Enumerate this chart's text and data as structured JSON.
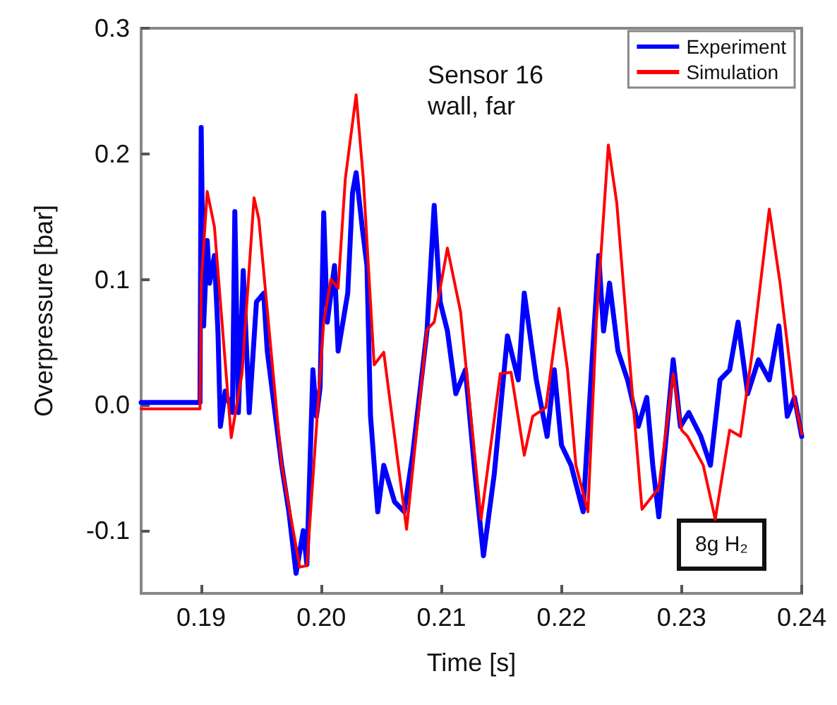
{
  "chart_data": {
    "type": "line",
    "xlabel": "Time [s]",
    "ylabel": "Overpressure [bar]",
    "annotations": [
      "Sensor 16\nwall, far",
      "8g H₂"
    ],
    "xlim": [
      0.185,
      0.24
    ],
    "xticks": [
      0.19,
      {
        "value": 0.2,
        "label": "0.20"
      },
      0.21,
      0.22,
      0.23,
      0.24
    ],
    "ylim": [
      -0.15,
      0.3
    ],
    "yticks": [
      -0.1,
      {
        "value": 0,
        "label": "0.0"
      },
      0.1,
      0.2,
      0.3
    ],
    "grid": false,
    "legend": "top right",
    "marker": "none",
    "line_style": "solid",
    "series": [
      {
        "name": "Experiment",
        "color": "#0000ff",
        "x": [
          0.185,
          0.1899,
          0.19,
          0.1902,
          0.1905,
          0.1907,
          0.1911,
          0.1914,
          0.1916,
          0.192,
          0.1926,
          0.1928,
          0.1931,
          0.1935,
          0.194,
          0.1946,
          0.1952,
          0.1955,
          0.1967,
          0.1973,
          0.1979,
          0.1985,
          0.1988,
          0.1993,
          0.1996,
          0.1999,
          0.2002,
          0.2005,
          0.2011,
          0.2014,
          0.2022,
          0.2026,
          0.2029,
          0.2034,
          0.2038,
          0.2041,
          0.2047,
          0.2052,
          0.2061,
          0.2069,
          0.2076,
          0.2088,
          0.2094,
          0.2099,
          0.2105,
          0.2112,
          0.212,
          0.2128,
          0.2135,
          0.2144,
          0.2155,
          0.2164,
          0.2169,
          0.2179,
          0.2188,
          0.2194,
          0.22,
          0.2208,
          0.2218,
          0.2225,
          0.2231,
          0.2235,
          0.224,
          0.2247,
          0.2255,
          0.2264,
          0.2271,
          0.2276,
          0.2281,
          0.2293,
          0.2299,
          0.2306,
          0.2316,
          0.2324,
          0.2332,
          0.234,
          0.2347,
          0.2355,
          0.2364,
          0.2373,
          0.2381,
          0.2388,
          0.2394,
          0.24
        ],
        "values": [
          0.002,
          0.002,
          0.221,
          0.063,
          0.131,
          0.097,
          0.119,
          0.057,
          -0.017,
          0.011,
          -0.006,
          0.154,
          -0.006,
          0.107,
          -0.006,
          0.082,
          0.089,
          0.043,
          -0.048,
          -0.085,
          -0.134,
          -0.1,
          -0.127,
          0.028,
          -0.009,
          0.014,
          0.153,
          0.066,
          0.111,
          0.043,
          0.089,
          0.169,
          0.185,
          0.142,
          0.111,
          -0.009,
          -0.085,
          -0.048,
          -0.077,
          -0.085,
          -0.04,
          0.059,
          0.159,
          0.082,
          0.059,
          0.009,
          0.028,
          -0.055,
          -0.12,
          -0.055,
          0.055,
          0.02,
          0.089,
          0.02,
          -0.025,
          0.028,
          -0.032,
          -0.048,
          -0.085,
          0.028,
          0.119,
          0.059,
          0.097,
          0.043,
          0.02,
          -0.017,
          0.006,
          -0.048,
          -0.089,
          0.036,
          -0.017,
          -0.006,
          -0.025,
          -0.048,
          0.02,
          0.028,
          0.066,
          0.009,
          0.036,
          0.02,
          0.063,
          -0.009,
          0.006,
          -0.025
        ]
      },
      {
        "name": "Simulation",
        "color": "#ff0000",
        "x": [
          0.185,
          0.1899,
          0.19,
          0.1905,
          0.1911,
          0.1925,
          0.1934,
          0.1944,
          0.1948,
          0.1967,
          0.1982,
          0.1988,
          0.2002,
          0.2008,
          0.2014,
          0.202,
          0.2029,
          0.2035,
          0.2044,
          0.2052,
          0.2071,
          0.2088,
          0.2094,
          0.2105,
          0.2116,
          0.2133,
          0.2149,
          0.2158,
          0.2169,
          0.2176,
          0.2187,
          0.2198,
          0.2205,
          0.2212,
          0.2222,
          0.2229,
          0.2239,
          0.2246,
          0.2255,
          0.2267,
          0.2281,
          0.2293,
          0.23,
          0.2305,
          0.2318,
          0.2328,
          0.234,
          0.2349,
          0.2359,
          0.2373,
          0.2382,
          0.2393,
          0.24
        ],
        "values": [
          -0.003,
          -0.003,
          0.097,
          0.17,
          0.142,
          -0.026,
          0.025,
          0.165,
          0.148,
          -0.048,
          -0.129,
          -0.128,
          0.066,
          0.1,
          0.093,
          0.18,
          0.247,
          0.18,
          0.032,
          0.042,
          -0.099,
          0.06,
          0.066,
          0.125,
          0.074,
          -0.091,
          0.025,
          0.026,
          -0.04,
          -0.009,
          -0.002,
          0.077,
          0.028,
          -0.048,
          -0.085,
          0.066,
          0.207,
          0.161,
          0.055,
          -0.083,
          -0.066,
          0.025,
          -0.02,
          -0.025,
          -0.048,
          -0.091,
          -0.02,
          -0.025,
          0.043,
          0.156,
          0.097,
          0.009,
          -0.023
        ]
      }
    ]
  }
}
